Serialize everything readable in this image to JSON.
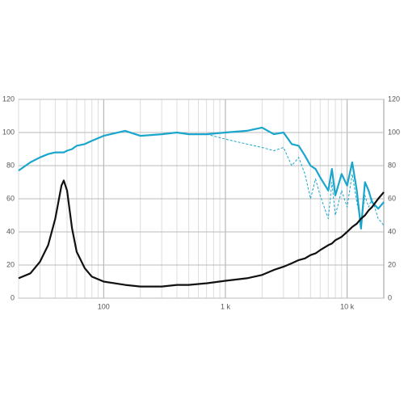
{
  "chart_data": {
    "type": "line",
    "x": [
      20,
      25,
      30,
      35,
      40,
      45,
      47,
      50,
      55,
      60,
      70,
      80,
      100,
      150,
      200,
      300,
      400,
      500,
      700,
      1000,
      1500,
      2000,
      2500,
      3000,
      3500,
      4000,
      4500,
      5000,
      5500,
      6000,
      7000,
      7500,
      8000,
      9000,
      10000,
      11000,
      12000,
      13000,
      14000,
      15000,
      16000,
      18000,
      20000
    ],
    "series": [
      {
        "color": "#1aa6cc",
        "dashed": false,
        "values": [
          77,
          82,
          85,
          87,
          88,
          88,
          88,
          89,
          90,
          92,
          93,
          95,
          98,
          101,
          98,
          99,
          100,
          99,
          99,
          100,
          101,
          103,
          99,
          100,
          93,
          92,
          86,
          80,
          78,
          73,
          65,
          78,
          62,
          75,
          68,
          82,
          65,
          42,
          70,
          65,
          58,
          54,
          58
        ]
      },
      {
        "color": "#1aa6cc",
        "dashed": true,
        "values": [
          77,
          82,
          85,
          87,
          88,
          88,
          88,
          89,
          90,
          92,
          93,
          95,
          98,
          101,
          98,
          99,
          100,
          99,
          99,
          96,
          93,
          91,
          89,
          91,
          80,
          85,
          75,
          60,
          72,
          62,
          48,
          70,
          50,
          65,
          55,
          75,
          58,
          45,
          62,
          55,
          60,
          48,
          44
        ]
      },
      {
        "color": "#111111",
        "dashed": false,
        "values": [
          12,
          15,
          22,
          32,
          48,
          68,
          71,
          65,
          42,
          28,
          18,
          13,
          10,
          8,
          7,
          7,
          8,
          8,
          9,
          10.5,
          12,
          14,
          17,
          19,
          21,
          23,
          24,
          26,
          27,
          29,
          32,
          33,
          35,
          37,
          40,
          43,
          45,
          48,
          50,
          53,
          55,
          60,
          64
        ]
      }
    ],
    "xlim": [
      20,
      20000
    ],
    "xlog": true,
    "xticks": [
      100,
      {
        "value": 1000,
        "label": "1 k"
      },
      {
        "value": 10000,
        "label": "10 k"
      }
    ],
    "xminorticks": [
      20,
      30,
      40,
      50,
      60,
      70,
      80,
      90,
      200,
      300,
      400,
      500,
      600,
      700,
      800,
      900,
      2000,
      3000,
      4000,
      5000,
      6000,
      7000,
      8000,
      9000
    ],
    "ylim": [
      0,
      120
    ],
    "yticks": [
      0,
      20,
      40,
      60,
      80,
      100,
      120
    ],
    "y2lim": [
      0,
      120
    ],
    "y2ticks": [
      0,
      20,
      40,
      60,
      80,
      100,
      120
    ],
    "grid": true
  }
}
